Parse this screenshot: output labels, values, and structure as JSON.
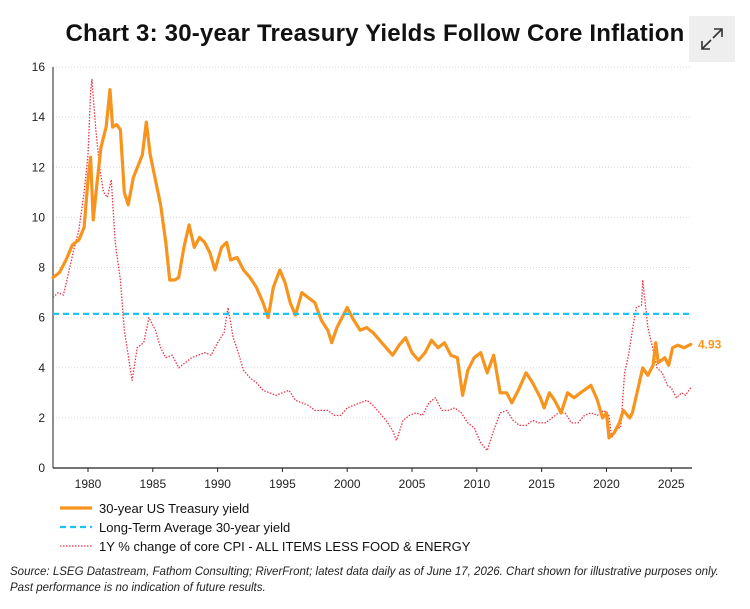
{
  "chart_data": {
    "type": "line",
    "title": "Chart 3: 30-year Treasury Yields Follow Core Inflation",
    "xlim": [
      1977.3,
      2026.6
    ],
    "ylim": [
      0,
      16
    ],
    "y_ticks": [
      0,
      2,
      4,
      6,
      8,
      10,
      12,
      14,
      16
    ],
    "x_ticks": [
      1980,
      1985,
      1990,
      1995,
      2000,
      2005,
      2010,
      2015,
      2020,
      2025
    ],
    "grid": "horizontal",
    "legend_placement": "bottom-left",
    "end_value_label": "4.93",
    "series": [
      {
        "name": "30-year US Treasury yield",
        "color": "#f7941d",
        "style": "solid",
        "points": [
          [
            1977.3,
            7.6
          ],
          [
            1977.8,
            7.8
          ],
          [
            1978.3,
            8.3
          ],
          [
            1978.8,
            8.9
          ],
          [
            1979.3,
            9.1
          ],
          [
            1979.7,
            9.6
          ],
          [
            1980.0,
            11.5
          ],
          [
            1980.2,
            12.4
          ],
          [
            1980.4,
            9.9
          ],
          [
            1980.7,
            11.4
          ],
          [
            1981.0,
            12.8
          ],
          [
            1981.4,
            13.6
          ],
          [
            1981.7,
            15.1
          ],
          [
            1981.9,
            13.6
          ],
          [
            1982.2,
            13.7
          ],
          [
            1982.5,
            13.5
          ],
          [
            1982.8,
            11.0
          ],
          [
            1983.1,
            10.5
          ],
          [
            1983.5,
            11.6
          ],
          [
            1983.9,
            12.1
          ],
          [
            1984.2,
            12.5
          ],
          [
            1984.5,
            13.8
          ],
          [
            1984.8,
            12.5
          ],
          [
            1985.2,
            11.5
          ],
          [
            1985.6,
            10.5
          ],
          [
            1986.0,
            9.0
          ],
          [
            1986.3,
            7.5
          ],
          [
            1986.7,
            7.5
          ],
          [
            1987.0,
            7.6
          ],
          [
            1987.4,
            8.8
          ],
          [
            1987.8,
            9.7
          ],
          [
            1988.2,
            8.8
          ],
          [
            1988.6,
            9.2
          ],
          [
            1989.0,
            9.0
          ],
          [
            1989.4,
            8.6
          ],
          [
            1989.8,
            7.9
          ],
          [
            1990.3,
            8.8
          ],
          [
            1990.7,
            9.0
          ],
          [
            1991.0,
            8.3
          ],
          [
            1991.5,
            8.4
          ],
          [
            1992.0,
            7.9
          ],
          [
            1992.5,
            7.6
          ],
          [
            1993.0,
            7.2
          ],
          [
            1993.5,
            6.6
          ],
          [
            1993.9,
            6.0
          ],
          [
            1994.3,
            7.2
          ],
          [
            1994.8,
            7.9
          ],
          [
            1995.2,
            7.4
          ],
          [
            1995.6,
            6.6
          ],
          [
            1996.0,
            6.1
          ],
          [
            1996.5,
            7.0
          ],
          [
            1997.0,
            6.8
          ],
          [
            1997.5,
            6.6
          ],
          [
            1998.0,
            5.9
          ],
          [
            1998.5,
            5.5
          ],
          [
            1998.8,
            5.0
          ],
          [
            1999.2,
            5.6
          ],
          [
            1999.7,
            6.1
          ],
          [
            2000.0,
            6.4
          ],
          [
            2000.5,
            5.9
          ],
          [
            2001.0,
            5.5
          ],
          [
            2001.5,
            5.6
          ],
          [
            2002.0,
            5.4
          ],
          [
            2002.5,
            5.1
          ],
          [
            2003.0,
            4.8
          ],
          [
            2003.5,
            4.5
          ],
          [
            2004.0,
            4.9
          ],
          [
            2004.5,
            5.2
          ],
          [
            2005.0,
            4.6
          ],
          [
            2005.5,
            4.3
          ],
          [
            2006.0,
            4.6
          ],
          [
            2006.5,
            5.1
          ],
          [
            2007.0,
            4.8
          ],
          [
            2007.5,
            5.0
          ],
          [
            2008.0,
            4.5
          ],
          [
            2008.5,
            4.4
          ],
          [
            2008.9,
            2.9
          ],
          [
            2009.3,
            3.9
          ],
          [
            2009.8,
            4.4
          ],
          [
            2010.3,
            4.6
          ],
          [
            2010.8,
            3.8
          ],
          [
            2011.3,
            4.5
          ],
          [
            2011.8,
            3.0
          ],
          [
            2012.3,
            3.0
          ],
          [
            2012.7,
            2.6
          ],
          [
            2013.2,
            3.1
          ],
          [
            2013.8,
            3.8
          ],
          [
            2014.3,
            3.4
          ],
          [
            2014.9,
            2.8
          ],
          [
            2015.2,
            2.4
          ],
          [
            2015.6,
            3.0
          ],
          [
            2016.0,
            2.7
          ],
          [
            2016.5,
            2.2
          ],
          [
            2017.0,
            3.0
          ],
          [
            2017.5,
            2.8
          ],
          [
            2018.0,
            3.0
          ],
          [
            2018.8,
            3.3
          ],
          [
            2019.3,
            2.7
          ],
          [
            2019.7,
            2.0
          ],
          [
            2020.0,
            2.2
          ],
          [
            2020.2,
            1.2
          ],
          [
            2020.6,
            1.4
          ],
          [
            2021.0,
            1.8
          ],
          [
            2021.3,
            2.3
          ],
          [
            2021.8,
            2.0
          ],
          [
            2022.0,
            2.2
          ],
          [
            2022.4,
            3.1
          ],
          [
            2022.8,
            4.0
          ],
          [
            2023.2,
            3.7
          ],
          [
            2023.6,
            4.1
          ],
          [
            2023.8,
            5.0
          ],
          [
            2024.0,
            4.2
          ],
          [
            2024.5,
            4.4
          ],
          [
            2024.8,
            4.1
          ],
          [
            2025.1,
            4.8
          ],
          [
            2025.5,
            4.9
          ],
          [
            2026.0,
            4.8
          ],
          [
            2026.5,
            4.93
          ]
        ]
      },
      {
        "name": "Long-Term Average 30-year yield",
        "color": "#1ec4f0",
        "style": "dashed",
        "points": [
          [
            1977.3,
            6.15
          ],
          [
            2026.6,
            6.15
          ]
        ]
      },
      {
        "name": "1Y % change of core CPI - ALL ITEMS LESS FOOD & ENERGY",
        "color": "#ee3344",
        "style": "dotted",
        "points": [
          [
            1977.3,
            6.8
          ],
          [
            1977.7,
            7.0
          ],
          [
            1978.1,
            6.9
          ],
          [
            1978.5,
            7.8
          ],
          [
            1978.9,
            8.7
          ],
          [
            1979.3,
            9.5
          ],
          [
            1979.7,
            11.0
          ],
          [
            1980.0,
            12.5
          ],
          [
            1980.2,
            15.0
          ],
          [
            1980.3,
            15.5
          ],
          [
            1980.6,
            13.5
          ],
          [
            1980.9,
            12.0
          ],
          [
            1981.2,
            11.0
          ],
          [
            1981.5,
            10.8
          ],
          [
            1981.8,
            11.5
          ],
          [
            1982.1,
            9.0
          ],
          [
            1982.5,
            7.5
          ],
          [
            1982.8,
            5.5
          ],
          [
            1983.1,
            4.5
          ],
          [
            1983.4,
            3.5
          ],
          [
            1983.8,
            4.8
          ],
          [
            1984.3,
            5.0
          ],
          [
            1984.7,
            6.0
          ],
          [
            1985.2,
            5.5
          ],
          [
            1985.6,
            4.8
          ],
          [
            1986.0,
            4.4
          ],
          [
            1986.5,
            4.5
          ],
          [
            1987.0,
            4.0
          ],
          [
            1987.5,
            4.2
          ],
          [
            1988.0,
            4.4
          ],
          [
            1988.5,
            4.5
          ],
          [
            1989.0,
            4.6
          ],
          [
            1989.5,
            4.5
          ],
          [
            1990.0,
            5.0
          ],
          [
            1990.5,
            5.4
          ],
          [
            1990.8,
            6.4
          ],
          [
            1991.2,
            5.2
          ],
          [
            1991.6,
            4.6
          ],
          [
            1992.0,
            3.9
          ],
          [
            1992.5,
            3.6
          ],
          [
            1993.0,
            3.4
          ],
          [
            1993.5,
            3.1
          ],
          [
            1994.0,
            3.0
          ],
          [
            1994.5,
            2.9
          ],
          [
            1995.0,
            3.0
          ],
          [
            1995.5,
            3.1
          ],
          [
            1996.0,
            2.7
          ],
          [
            1996.5,
            2.6
          ],
          [
            1997.0,
            2.5
          ],
          [
            1997.5,
            2.3
          ],
          [
            1998.0,
            2.3
          ],
          [
            1998.5,
            2.3
          ],
          [
            1999.0,
            2.1
          ],
          [
            1999.5,
            2.1
          ],
          [
            2000.0,
            2.4
          ],
          [
            2000.5,
            2.5
          ],
          [
            2001.0,
            2.6
          ],
          [
            2001.5,
            2.7
          ],
          [
            2002.0,
            2.5
          ],
          [
            2002.5,
            2.2
          ],
          [
            2003.0,
            1.9
          ],
          [
            2003.5,
            1.5
          ],
          [
            2003.8,
            1.1
          ],
          [
            2004.3,
            1.9
          ],
          [
            2004.8,
            2.1
          ],
          [
            2005.3,
            2.2
          ],
          [
            2005.8,
            2.1
          ],
          [
            2006.3,
            2.6
          ],
          [
            2006.8,
            2.8
          ],
          [
            2007.3,
            2.3
          ],
          [
            2007.8,
            2.3
          ],
          [
            2008.3,
            2.4
          ],
          [
            2008.8,
            2.2
          ],
          [
            2009.3,
            1.8
          ],
          [
            2009.8,
            1.6
          ],
          [
            2010.3,
            1.0
          ],
          [
            2010.8,
            0.7
          ],
          [
            2011.3,
            1.5
          ],
          [
            2011.8,
            2.2
          ],
          [
            2012.3,
            2.3
          ],
          [
            2012.8,
            1.9
          ],
          [
            2013.3,
            1.7
          ],
          [
            2013.8,
            1.7
          ],
          [
            2014.3,
            1.9
          ],
          [
            2014.8,
            1.8
          ],
          [
            2015.3,
            1.8
          ],
          [
            2015.8,
            2.0
          ],
          [
            2016.3,
            2.2
          ],
          [
            2016.8,
            2.2
          ],
          [
            2017.3,
            1.8
          ],
          [
            2017.8,
            1.8
          ],
          [
            2018.3,
            2.1
          ],
          [
            2018.8,
            2.2
          ],
          [
            2019.3,
            2.1
          ],
          [
            2019.8,
            2.3
          ],
          [
            2020.2,
            2.1
          ],
          [
            2020.4,
            1.2
          ],
          [
            2020.8,
            1.6
          ],
          [
            2021.1,
            1.6
          ],
          [
            2021.4,
            3.8
          ],
          [
            2021.7,
            4.5
          ],
          [
            2022.0,
            5.5
          ],
          [
            2022.3,
            6.4
          ],
          [
            2022.7,
            6.5
          ],
          [
            2022.8,
            7.5
          ],
          [
            2023.2,
            5.6
          ],
          [
            2023.6,
            4.7
          ],
          [
            2023.9,
            4.0
          ],
          [
            2024.3,
            3.8
          ],
          [
            2024.7,
            3.3
          ],
          [
            2025.0,
            3.2
          ],
          [
            2025.4,
            2.8
          ],
          [
            2025.8,
            3.0
          ],
          [
            2026.1,
            2.9
          ],
          [
            2026.5,
            3.2
          ]
        ]
      }
    ]
  },
  "header": {
    "expand_icon": "expand-arrows-icon"
  },
  "footer": {
    "source_text": "Source: LSEG Datastream, Fathom Consulting; RiverFront; latest data daily as of June 17, 2026. Chart shown for illustrative purposes only. Past performance is no indication of future results."
  }
}
